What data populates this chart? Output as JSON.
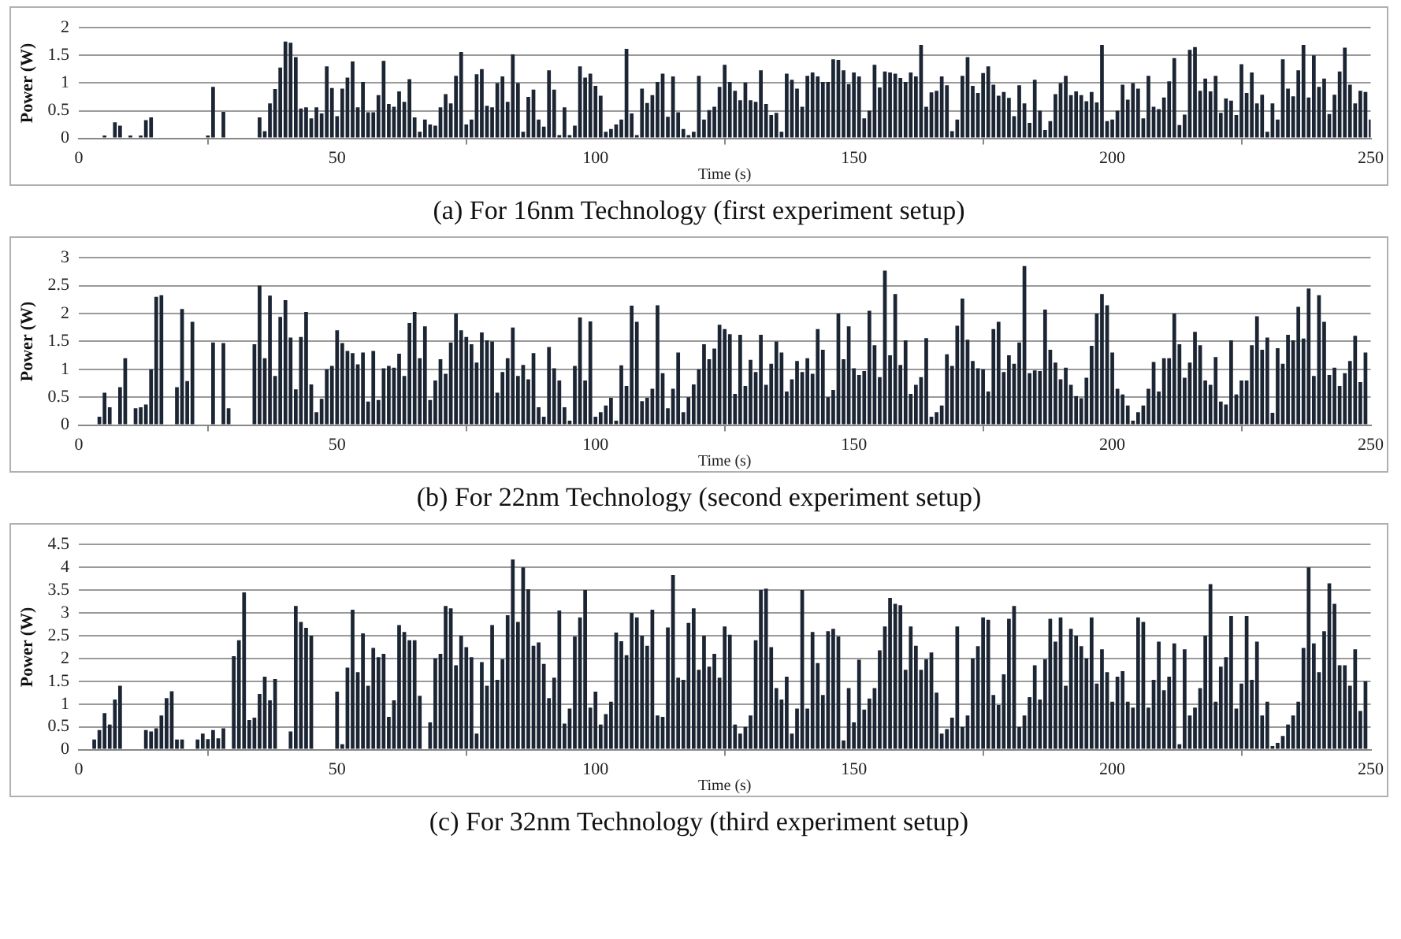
{
  "chart_data": [
    {
      "type": "bar",
      "title": "(a) For 16nm Technology (first experiment setup)",
      "xlabel": "Time (s)",
      "ylabel": "Power (W)",
      "color": "#1c2533",
      "grid": "y",
      "legend": false,
      "xlim": [
        0,
        250
      ],
      "xticks": [
        0,
        50,
        100,
        150,
        200,
        250
      ],
      "ylim": [
        0,
        2
      ],
      "yticks": [
        0,
        0.5,
        1,
        1.5,
        2
      ],
      "x": [
        5,
        7,
        8,
        10,
        12,
        13,
        14,
        25,
        26,
        28,
        35,
        36,
        37,
        38,
        39,
        40,
        41,
        42,
        43,
        44,
        45,
        46,
        47,
        48,
        49,
        50,
        51,
        52,
        53,
        54,
        55,
        56,
        57,
        58,
        59,
        60,
        61,
        62,
        63,
        64,
        65,
        66,
        67,
        68,
        69,
        70,
        71,
        72,
        73,
        74,
        75,
        76,
        77,
        78,
        79,
        80,
        81,
        82,
        83,
        84,
        85,
        86,
        87,
        88,
        89,
        90,
        91,
        92,
        93,
        94,
        95,
        96,
        97,
        98,
        99,
        100,
        101,
        102,
        103,
        104,
        105,
        106,
        107,
        108,
        109,
        110,
        111,
        112,
        113,
        114,
        115,
        116,
        117,
        118,
        119,
        120,
        121,
        122,
        123,
        124,
        125,
        126,
        127,
        128,
        129,
        130,
        131,
        132,
        133,
        134,
        135,
        136,
        137,
        138,
        139,
        140,
        141,
        142,
        143,
        144,
        145,
        146,
        147,
        148,
        149,
        150,
        151,
        152,
        153,
        154,
        155,
        156,
        157,
        158,
        159,
        160,
        161,
        162,
        163,
        164,
        165,
        166,
        167,
        168,
        169,
        170,
        171,
        172,
        173,
        174,
        175,
        176,
        177,
        178,
        179,
        180,
        181,
        182,
        183,
        184,
        185,
        186,
        187,
        188,
        189,
        190,
        191,
        192,
        193,
        194,
        195,
        196,
        197,
        198,
        199,
        200,
        201,
        202,
        203,
        204,
        205,
        206,
        207,
        208,
        209,
        210,
        211,
        212,
        213,
        214,
        215,
        216,
        217,
        218,
        219,
        220,
        221,
        222,
        223,
        224,
        225,
        226,
        227,
        228,
        229,
        230,
        231,
        232,
        233,
        234,
        235,
        236,
        237,
        238,
        239,
        240,
        241,
        242,
        243,
        244,
        245,
        246,
        247,
        248,
        249,
        250
      ],
      "values": [
        0.05,
        0.29,
        0.23,
        0.05,
        0.05,
        0.33,
        0.38,
        0.05,
        0.93,
        0.48,
        0.38,
        0.13,
        0.63,
        0.89,
        1.28,
        1.75,
        1.73,
        1.47,
        0.54,
        0.56,
        0.36,
        0.56,
        0.45,
        1.3,
        0.91,
        0.4,
        0.9,
        1.1,
        1.39,
        0.56,
        1.02,
        0.47,
        0.47,
        0.78,
        1.4,
        0.62,
        0.57,
        0.85,
        0.66,
        1.07,
        0.38,
        0.12,
        0.34,
        0.25,
        0.23,
        0.56,
        0.8,
        0.63,
        1.13,
        1.56,
        0.25,
        0.34,
        1.16,
        1.25,
        0.59,
        0.56,
        1.0,
        1.12,
        0.66,
        1.52,
        1.0,
        0.12,
        0.75,
        0.88,
        0.34,
        0.21,
        1.23,
        0.88,
        0.06,
        0.56,
        0.06,
        0.23,
        1.3,
        1.1,
        1.17,
        0.95,
        0.77,
        0.12,
        0.17,
        0.25,
        0.34,
        1.62,
        0.45,
        0.06,
        0.9,
        0.64,
        0.78,
        1.02,
        1.17,
        0.39,
        1.12,
        0.47,
        0.17,
        0.06,
        0.12,
        1.13,
        0.34,
        0.51,
        0.57,
        0.93,
        1.33,
        1.02,
        0.86,
        0.69,
        1.01,
        0.69,
        0.66,
        1.23,
        0.62,
        0.42,
        0.46,
        0.12,
        1.17,
        1.06,
        0.9,
        0.57,
        1.13,
        1.19,
        1.12,
        1.02,
        1.02,
        1.43,
        1.42,
        1.23,
        0.98,
        1.19,
        1.12,
        0.36,
        0.5,
        1.33,
        0.92,
        1.21,
        1.19,
        1.17,
        1.09,
        1.02,
        1.19,
        1.12,
        1.69,
        0.57,
        0.83,
        0.86,
        1.12,
        0.96,
        0.13,
        0.34,
        1.13,
        1.47,
        0.95,
        0.82,
        1.18,
        1.3,
        0.97,
        0.77,
        0.84,
        0.73,
        0.4,
        0.96,
        0.63,
        0.28,
        1.06,
        0.5,
        0.15,
        0.31,
        0.8,
        1.0,
        1.13,
        0.78,
        0.85,
        0.78,
        0.67,
        0.84,
        0.65,
        1.69,
        0.31,
        0.34,
        0.5,
        0.97,
        0.7,
        1.0,
        0.9,
        0.36,
        1.13,
        0.57,
        0.53,
        0.74,
        1.03,
        1.45,
        0.24,
        0.43,
        1.6,
        1.65,
        0.86,
        1.08,
        0.85,
        1.13,
        0.46,
        0.72,
        0.68,
        0.42,
        1.34,
        0.82,
        1.19,
        0.63,
        0.79,
        0.12,
        0.63,
        0.34,
        1.43,
        0.9,
        0.76,
        1.23,
        1.69,
        0.74,
        1.5,
        0.93,
        1.08,
        0.44,
        0.79,
        1.21,
        1.64,
        0.97,
        0.63,
        0.86,
        0.84,
        0.34
      ]
    },
    {
      "type": "bar",
      "title": "(b) For 22nm Technology (second experiment setup)",
      "xlabel": "Time (s)",
      "ylabel": "Power (W)",
      "color": "#1c2533",
      "grid": "y",
      "legend": false,
      "xlim": [
        0,
        250
      ],
      "xticks": [
        0,
        50,
        100,
        150,
        200,
        250
      ],
      "ylim": [
        0,
        3
      ],
      "yticks": [
        0,
        0.5,
        1,
        1.5,
        2,
        2.5,
        3
      ],
      "x": [
        4,
        5,
        6,
        8,
        9,
        11,
        12,
        13,
        14,
        15,
        16,
        19,
        20,
        21,
        22,
        26,
        28,
        29,
        34,
        35,
        36,
        37,
        38,
        39,
        40,
        41,
        42,
        43,
        44,
        45,
        46,
        47,
        48,
        49,
        50,
        51,
        52,
        53,
        54,
        55,
        56,
        57,
        58,
        59,
        60,
        61,
        62,
        63,
        64,
        65,
        66,
        67,
        68,
        69,
        70,
        71,
        72,
        73,
        74,
        75,
        76,
        77,
        78,
        79,
        80,
        81,
        82,
        83,
        84,
        85,
        86,
        87,
        88,
        89,
        90,
        91,
        92,
        93,
        94,
        95,
        96,
        97,
        98,
        99,
        100,
        101,
        102,
        103,
        104,
        105,
        106,
        107,
        108,
        109,
        110,
        111,
        112,
        113,
        114,
        115,
        116,
        117,
        118,
        119,
        120,
        121,
        122,
        123,
        124,
        125,
        126,
        127,
        128,
        129,
        130,
        131,
        132,
        133,
        134,
        135,
        136,
        137,
        138,
        139,
        140,
        141,
        142,
        143,
        144,
        145,
        146,
        147,
        148,
        149,
        150,
        151,
        152,
        153,
        154,
        155,
        156,
        157,
        158,
        159,
        160,
        161,
        162,
        163,
        164,
        165,
        166,
        167,
        168,
        169,
        170,
        171,
        172,
        173,
        174,
        175,
        176,
        177,
        178,
        179,
        180,
        181,
        182,
        183,
        184,
        185,
        186,
        187,
        188,
        189,
        190,
        191,
        192,
        193,
        194,
        195,
        196,
        197,
        198,
        199,
        200,
        201,
        202,
        203,
        204,
        205,
        206,
        207,
        208,
        209,
        210,
        211,
        212,
        213,
        214,
        215,
        216,
        217,
        218,
        219,
        220,
        221,
        222,
        223,
        224,
        225,
        226,
        227,
        228,
        229,
        230,
        231,
        232,
        233,
        234,
        235,
        236,
        237,
        238,
        239,
        240,
        241,
        242,
        243,
        244,
        245,
        246,
        247,
        248,
        249
      ],
      "values": [
        0.15,
        0.58,
        0.32,
        0.68,
        1.2,
        0.3,
        0.32,
        0.37,
        1.0,
        2.3,
        2.33,
        0.68,
        2.08,
        0.79,
        1.85,
        1.48,
        1.47,
        0.3,
        1.45,
        2.5,
        1.2,
        2.32,
        0.88,
        1.94,
        2.24,
        1.57,
        0.64,
        1.58,
        2.03,
        0.73,
        0.23,
        0.47,
        1.0,
        1.06,
        1.7,
        1.47,
        1.33,
        1.29,
        1.09,
        1.3,
        0.42,
        1.33,
        0.45,
        1.02,
        1.06,
        1.03,
        1.28,
        0.88,
        1.83,
        2.03,
        1.2,
        1.77,
        0.45,
        0.8,
        1.18,
        0.92,
        1.48,
        2.0,
        1.7,
        1.58,
        1.45,
        1.12,
        1.66,
        1.52,
        1.5,
        0.58,
        0.95,
        1.2,
        1.75,
        0.88,
        1.08,
        0.82,
        1.29,
        0.32,
        0.15,
        1.4,
        1.02,
        0.8,
        0.32,
        0.08,
        1.06,
        1.93,
        0.8,
        1.86,
        0.15,
        0.23,
        0.35,
        0.49,
        0.08,
        1.07,
        0.7,
        2.14,
        1.85,
        0.43,
        0.49,
        0.65,
        2.15,
        0.93,
        0.3,
        0.65,
        1.3,
        0.23,
        0.5,
        0.73,
        1.0,
        1.45,
        1.18,
        1.37,
        1.8,
        1.72,
        1.63,
        0.56,
        1.62,
        0.7,
        1.17,
        0.95,
        1.62,
        0.72,
        1.1,
        1.5,
        1.3,
        0.6,
        0.82,
        1.15,
        0.95,
        1.2,
        0.92,
        1.72,
        1.35,
        0.5,
        0.63,
        2.0,
        1.18,
        1.77,
        1.02,
        0.9,
        0.97,
        2.05,
        1.43,
        0.86,
        2.77,
        1.25,
        2.35,
        1.08,
        1.52,
        0.56,
        0.72,
        0.86,
        1.56,
        0.15,
        0.23,
        0.35,
        1.27,
        1.06,
        1.78,
        2.27,
        1.53,
        1.15,
        1.02,
        1.0,
        0.6,
        1.72,
        1.85,
        0.95,
        1.25,
        1.1,
        1.48,
        2.85,
        0.93,
        0.98,
        0.97,
        2.07,
        1.35,
        1.12,
        0.82,
        1.03,
        0.72,
        0.52,
        0.48,
        0.85,
        1.42,
        2.0,
        2.35,
        2.15,
        1.3,
        0.65,
        0.55,
        0.35,
        0.08,
        0.23,
        0.35,
        0.65,
        1.13,
        0.6,
        1.2,
        1.2,
        2.0,
        1.45,
        0.85,
        1.12,
        1.67,
        1.43,
        0.8,
        0.72,
        1.22,
        0.42,
        0.37,
        1.52,
        0.55,
        0.8,
        0.8,
        1.43,
        1.95,
        1.35,
        1.57,
        0.22,
        1.38,
        1.1,
        1.62,
        1.52,
        2.12,
        1.55,
        2.45,
        0.88,
        2.33,
        1.85,
        0.9,
        1.03,
        0.7,
        0.93,
        1.15,
        1.6,
        0.77,
        1.3
      ]
    },
    {
      "type": "bar",
      "title": "(c) For 32nm Technology (third experiment setup)",
      "xlabel": "Time (s)",
      "ylabel": "Power (W)",
      "color": "#1c2533",
      "grid": "y",
      "legend": false,
      "xlim": [
        0,
        250
      ],
      "xticks": [
        0,
        50,
        100,
        150,
        200,
        250
      ],
      "ylim": [
        0,
        4.5
      ],
      "yticks": [
        0,
        0.5,
        1,
        1.5,
        2,
        2.5,
        3,
        3.5,
        4,
        4.5
      ],
      "x": [
        3,
        4,
        5,
        6,
        7,
        8,
        13,
        14,
        15,
        16,
        17,
        18,
        19,
        20,
        23,
        24,
        25,
        26,
        27,
        28,
        30,
        31,
        32,
        33,
        34,
        35,
        36,
        37,
        38,
        41,
        42,
        43,
        44,
        45,
        50,
        51,
        52,
        53,
        54,
        55,
        56,
        57,
        58,
        59,
        60,
        61,
        62,
        63,
        64,
        65,
        66,
        68,
        69,
        70,
        71,
        72,
        73,
        74,
        75,
        76,
        77,
        78,
        79,
        80,
        81,
        82,
        83,
        84,
        85,
        86,
        87,
        88,
        89,
        90,
        91,
        92,
        93,
        94,
        95,
        96,
        97,
        98,
        99,
        100,
        101,
        102,
        103,
        104,
        105,
        106,
        107,
        108,
        109,
        110,
        111,
        112,
        113,
        114,
        115,
        116,
        117,
        118,
        119,
        120,
        121,
        122,
        123,
        124,
        125,
        126,
        127,
        128,
        129,
        130,
        131,
        132,
        133,
        134,
        135,
        136,
        137,
        138,
        139,
        140,
        141,
        142,
        143,
        144,
        145,
        146,
        147,
        148,
        149,
        150,
        151,
        152,
        153,
        154,
        155,
        156,
        157,
        158,
        159,
        160,
        161,
        162,
        163,
        164,
        165,
        166,
        167,
        168,
        169,
        170,
        171,
        172,
        173,
        174,
        175,
        176,
        177,
        178,
        179,
        180,
        181,
        182,
        183,
        184,
        185,
        186,
        187,
        188,
        189,
        190,
        191,
        192,
        193,
        194,
        195,
        196,
        197,
        198,
        199,
        200,
        201,
        202,
        203,
        204,
        205,
        206,
        207,
        208,
        209,
        210,
        211,
        212,
        213,
        214,
        215,
        216,
        217,
        218,
        219,
        220,
        221,
        222,
        223,
        224,
        225,
        226,
        227,
        228,
        229,
        230,
        231,
        232,
        233,
        234,
        235,
        236,
        237,
        238,
        239,
        240,
        241,
        242,
        243,
        244,
        245,
        246,
        247,
        248,
        249
      ],
      "values": [
        0.22,
        0.43,
        0.8,
        0.55,
        1.1,
        1.4,
        0.43,
        0.4,
        0.47,
        0.75,
        1.13,
        1.28,
        0.22,
        0.22,
        0.22,
        0.35,
        0.23,
        0.43,
        0.25,
        0.47,
        2.05,
        2.4,
        3.45,
        0.65,
        0.7,
        1.22,
        1.6,
        1.08,
        1.55,
        0.4,
        3.15,
        2.8,
        2.67,
        2.5,
        1.27,
        0.12,
        1.8,
        3.07,
        1.7,
        2.55,
        1.4,
        2.23,
        2.03,
        2.1,
        0.72,
        1.08,
        2.73,
        2.58,
        2.4,
        2.4,
        1.18,
        0.6,
        2.0,
        2.1,
        3.15,
        3.1,
        1.85,
        2.5,
        2.25,
        2.03,
        0.35,
        1.92,
        1.4,
        2.73,
        1.53,
        1.98,
        2.95,
        4.17,
        2.8,
        4.0,
        3.52,
        2.28,
        2.35,
        1.88,
        1.13,
        1.58,
        3.05,
        0.57,
        0.9,
        2.48,
        2.9,
        3.5,
        0.92,
        1.27,
        0.55,
        0.78,
        1.05,
        2.57,
        2.38,
        2.07,
        3.0,
        2.9,
        2.5,
        2.28,
        3.07,
        0.75,
        0.72,
        2.68,
        3.83,
        1.58,
        1.53,
        2.78,
        3.1,
        1.75,
        2.5,
        1.82,
        2.1,
        1.58,
        2.7,
        2.52,
        0.55,
        0.35,
        0.5,
        0.75,
        2.4,
        3.5,
        3.53,
        2.25,
        1.35,
        1.1,
        1.6,
        0.35,
        0.9,
        3.5,
        0.9,
        2.58,
        1.9,
        1.2,
        2.6,
        2.65,
        2.48,
        0.2,
        1.35,
        0.6,
        1.97,
        0.88,
        1.12,
        1.35,
        2.18,
        2.7,
        3.33,
        3.2,
        3.17,
        1.75,
        2.7,
        2.28,
        1.75,
        1.98,
        2.13,
        1.25,
        0.35,
        0.45,
        0.7,
        2.7,
        0.5,
        0.75,
        2.0,
        2.27,
        2.9,
        2.85,
        1.2,
        0.98,
        1.65,
        2.87,
        3.15,
        0.5,
        0.75,
        1.15,
        1.85,
        1.1,
        1.98,
        2.87,
        2.37,
        2.9,
        1.4,
        2.65,
        2.5,
        2.27,
        2.0,
        2.9,
        1.45,
        2.2,
        1.7,
        1.05,
        1.6,
        1.72,
        1.05,
        0.92,
        2.9,
        2.8,
        0.92,
        1.53,
        2.37,
        1.3,
        1.6,
        2.33,
        0.12,
        2.2,
        0.75,
        0.92,
        1.35,
        2.5,
        3.63,
        1.05,
        1.82,
        2.03,
        2.93,
        0.9,
        1.45,
        2.93,
        1.53,
        2.37,
        0.75,
        1.05,
        0.08,
        0.15,
        0.3,
        0.55,
        0.75,
        1.05,
        2.23,
        4.0,
        2.33,
        1.7,
        2.6,
        3.65,
        3.2,
        1.85,
        1.85,
        1.4,
        2.2,
        0.85,
        1.5
      ]
    }
  ]
}
